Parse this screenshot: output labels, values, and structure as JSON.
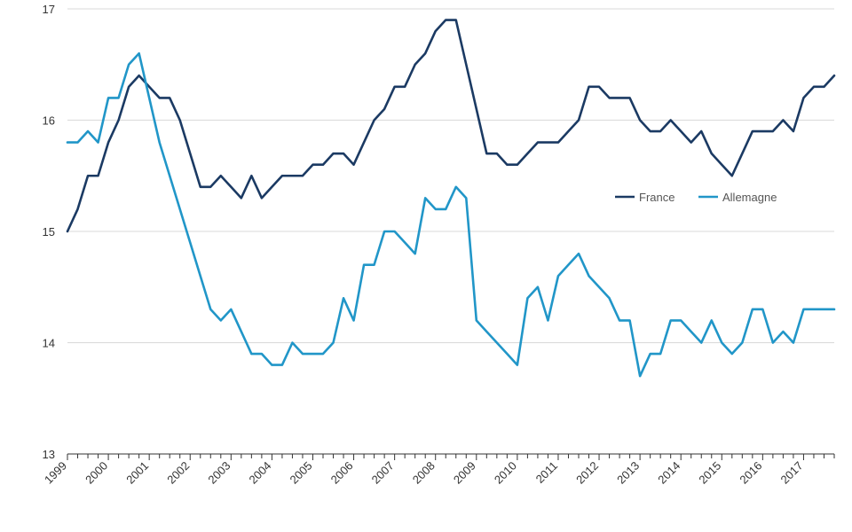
{
  "chart_data": {
    "type": "line",
    "title": "",
    "xlabel": "",
    "ylabel": "",
    "ylim": [
      13,
      17
    ],
    "yticks": [
      "13",
      "14",
      "15",
      "16",
      "17"
    ],
    "xlim": [
      1999.0,
      2017.75
    ],
    "xticks": [
      "1999",
      "2000",
      "2001",
      "2002",
      "2003",
      "2004",
      "2005",
      "2006",
      "2007",
      "2008",
      "2009",
      "2010",
      "2011",
      "2012",
      "2013",
      "2014",
      "2015",
      "2016",
      "2017"
    ],
    "grid": "horizontal",
    "legend_position": "right",
    "x_frequency": "quarterly",
    "x": [
      1999.0,
      1999.25,
      1999.5,
      1999.75,
      2000.0,
      2000.25,
      2000.5,
      2000.75,
      2001.0,
      2001.25,
      2001.5,
      2001.75,
      2002.0,
      2002.25,
      2002.5,
      2002.75,
      2003.0,
      2003.25,
      2003.5,
      2003.75,
      2004.0,
      2004.25,
      2004.5,
      2004.75,
      2005.0,
      2005.25,
      2005.5,
      2005.75,
      2006.0,
      2006.25,
      2006.5,
      2006.75,
      2007.0,
      2007.25,
      2007.5,
      2007.75,
      2008.0,
      2008.25,
      2008.5,
      2008.75,
      2009.0,
      2009.25,
      2009.5,
      2009.75,
      2010.0,
      2010.25,
      2010.5,
      2010.75,
      2011.0,
      2011.25,
      2011.5,
      2011.75,
      2012.0,
      2012.25,
      2012.5,
      2012.75,
      2013.0,
      2013.25,
      2013.5,
      2013.75,
      2014.0,
      2014.25,
      2014.5,
      2014.75,
      2015.0,
      2015.25,
      2015.5,
      2015.75,
      2016.0,
      2016.25,
      2016.5,
      2016.75,
      2017.0,
      2017.25,
      2017.5,
      2017.75
    ],
    "series": [
      {
        "name": "France",
        "color": "#1b3a63",
        "values": [
          15.0,
          15.2,
          15.5,
          15.5,
          15.8,
          16.0,
          16.3,
          16.4,
          16.3,
          16.2,
          16.2,
          16.0,
          15.7,
          15.4,
          15.4,
          15.5,
          15.4,
          15.3,
          15.5,
          15.3,
          15.4,
          15.5,
          15.5,
          15.5,
          15.6,
          15.6,
          15.7,
          15.7,
          15.6,
          15.8,
          16.0,
          16.1,
          16.3,
          16.3,
          16.5,
          16.6,
          16.8,
          16.9,
          16.9,
          16.5,
          16.1,
          15.7,
          15.7,
          15.6,
          15.6,
          15.7,
          15.8,
          15.8,
          15.8,
          15.9,
          16.0,
          16.3,
          16.3,
          16.2,
          16.2,
          16.2,
          16.0,
          15.9,
          15.9,
          16.0,
          15.9,
          15.8,
          15.9,
          15.7,
          15.6,
          15.5,
          15.7,
          15.9,
          15.9,
          15.9,
          16.0,
          15.9,
          16.2,
          16.3,
          16.3,
          16.4
        ]
      },
      {
        "name": "Allemagne",
        "color": "#2196c8",
        "values": [
          15.8,
          15.8,
          15.9,
          15.8,
          16.2,
          16.2,
          16.5,
          16.6,
          16.2,
          15.8,
          15.5,
          15.2,
          14.9,
          14.6,
          14.3,
          14.2,
          14.3,
          14.1,
          13.9,
          13.9,
          13.8,
          13.8,
          14.0,
          13.9,
          13.9,
          13.9,
          14.0,
          14.4,
          14.2,
          14.7,
          14.7,
          15.0,
          15.0,
          14.9,
          14.8,
          15.3,
          15.2,
          15.2,
          15.4,
          15.3,
          14.2,
          14.1,
          14.0,
          13.9,
          13.8,
          14.4,
          14.5,
          14.2,
          14.6,
          14.7,
          14.8,
          14.6,
          14.5,
          14.4,
          14.2,
          14.2,
          13.7,
          13.9,
          13.9,
          14.2,
          14.2,
          14.1,
          14.0,
          14.2,
          14.0,
          13.9,
          14.0,
          14.3,
          14.3,
          14.0,
          14.1,
          14.0,
          14.3,
          14.3,
          14.3,
          14.3
        ]
      }
    ]
  }
}
